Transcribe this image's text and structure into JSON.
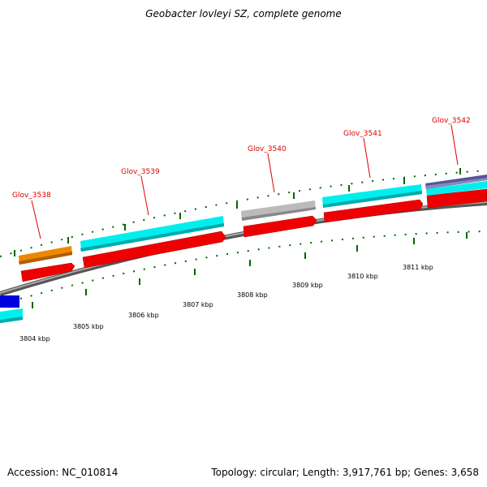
{
  "title": "Geobacter lovleyi SZ, complete genome",
  "footer": {
    "accession": "Accession: NC_010814",
    "summary": "Topology: circular; Length: 3,917,761 bp; Genes: 3,658"
  },
  "gene_labels": [
    "Glov_3538",
    "Glov_3539",
    "Glov_3540",
    "Glov_3541",
    "Glov_3542"
  ],
  "kbp_labels": [
    "3804 kbp",
    "3805 kbp",
    "3806 kbp",
    "3807 kbp",
    "3808 kbp",
    "3809 kbp",
    "3810 kbp",
    "3811 kbp"
  ],
  "colors": {
    "cds_forward": "#ee0000",
    "gene_cyan": "#00eeee",
    "gene_orange": "#ee8800",
    "gene_gray": "#bbbbbb",
    "gene_blue": "#0000dd",
    "gene_purple": "#555599",
    "backbone": "#888888",
    "tick_green": "#006600",
    "label_red": "#dd0000"
  }
}
